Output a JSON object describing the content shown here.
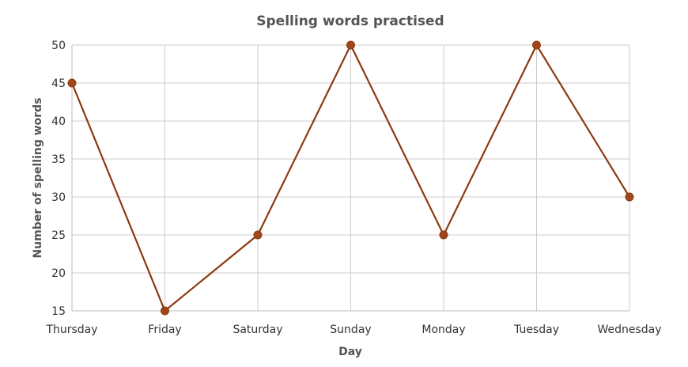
{
  "chart_data": {
    "type": "line",
    "title": "Spelling words practised",
    "xlabel": "Day",
    "ylabel": "Number of spelling words",
    "categories": [
      "Thursday",
      "Friday",
      "Saturday",
      "Sunday",
      "Monday",
      "Tuesday",
      "Wednesday"
    ],
    "series": [
      {
        "values": [
          45,
          15,
          25,
          50,
          25,
          50,
          30
        ]
      }
    ],
    "ylim": [
      15,
      50
    ],
    "yticks": [
      15,
      20,
      25,
      30,
      35,
      40,
      45,
      50
    ],
    "grid": true,
    "legend": "none",
    "colors": {
      "line": "#8b3a10",
      "marker": "#a0461a",
      "grid": "#cccccc"
    }
  }
}
